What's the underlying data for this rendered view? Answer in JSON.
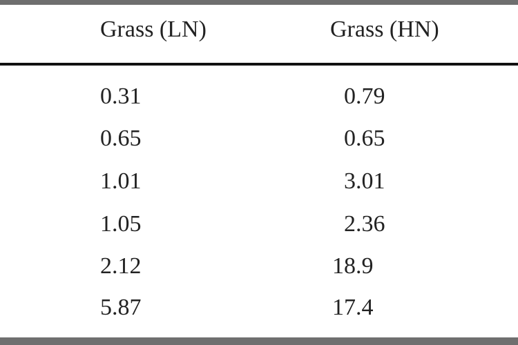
{
  "table": {
    "header": [
      "Grass (LN)",
      "Grass (HN)"
    ],
    "rows": [
      [
        "0.31",
        "0.79"
      ],
      [
        "0.65",
        "0.65"
      ],
      [
        "1.01",
        "3.01"
      ],
      [
        "1.05",
        "2.36"
      ],
      [
        "2.12",
        "18.9"
      ],
      [
        "5.87",
        "17.4"
      ]
    ]
  }
}
